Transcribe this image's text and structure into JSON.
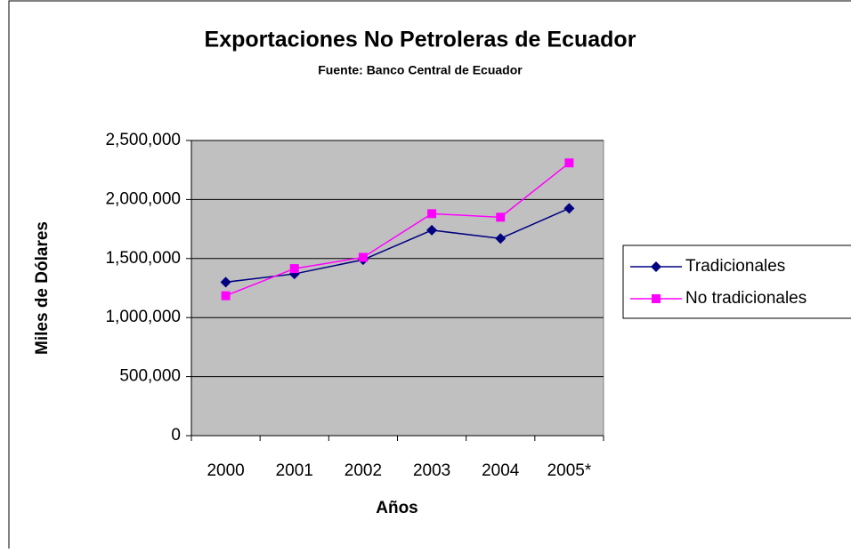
{
  "chart_data": {
    "type": "line",
    "title": "Exportaciones No Petroleras de Ecuador",
    "subtitle": "Fuente: Banco Central de Ecuador",
    "x_label": "Años",
    "y_label": "Miles de Dólares",
    "categories": [
      "2000",
      "2001",
      "2002",
      "2003",
      "2004",
      "2005*"
    ],
    "series": [
      {
        "name": "Tradicionales",
        "color": "#000080",
        "marker": "diamond",
        "values": [
          1300000,
          1370000,
          1490000,
          1740000,
          1670000,
          1925000
        ]
      },
      {
        "name": "No tradicionales",
        "color": "#ff00ff",
        "marker": "square",
        "values": [
          1185000,
          1415000,
          1510000,
          1880000,
          1850000,
          2310000
        ]
      }
    ],
    "ylim": [
      0,
      2500000
    ],
    "yticks": [
      0,
      {
        "value": 500000,
        "label": "500,000"
      },
      {
        "value": 1000000,
        "label": "1,000,000"
      },
      {
        "value": 1500000,
        "label": "1,500,000"
      },
      {
        "value": 2000000,
        "label": "2,000,000"
      },
      {
        "value": 2500000,
        "label": "2,500,000"
      }
    ],
    "grid": true,
    "legend": "right",
    "plot_background": "#c0c0c0"
  }
}
